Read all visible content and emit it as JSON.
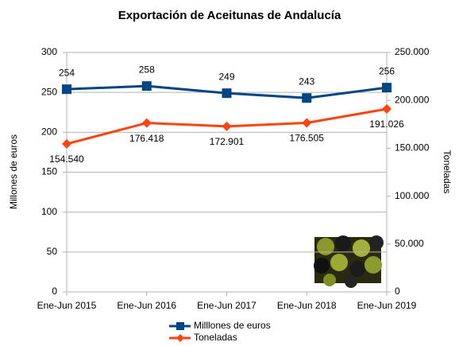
{
  "chart_data": {
    "type": "line",
    "title": "Exportación de Aceitunas de Andalucía",
    "y_label": "Millones de euros",
    "y2_label": "Toneladas",
    "categories": [
      "Ene-Jun 2015",
      "Ene-Jun 2016",
      "Ene-Jun 2017",
      "Ene-Jun 2018",
      "Ene-Jun 2019"
    ],
    "series": [
      {
        "name": "Milllones de euros",
        "color": "#004586",
        "values": [
          254,
          258,
          249,
          243,
          256
        ]
      },
      {
        "name": "Toneladas",
        "color": "#ff420e",
        "axis": "y2",
        "values": [
          154540,
          176418,
          172901,
          176505,
          191026
        ],
        "value_labels": [
          "154.540",
          "176.418",
          "172.901",
          "176.505",
          "191.026"
        ]
      }
    ],
    "ylim": [
      0,
      300
    ],
    "yticks": [
      0,
      50,
      100,
      150,
      200,
      250,
      300
    ],
    "y2lim": [
      0,
      250000
    ],
    "y2ticks": [
      0,
      {
        "value": 50000,
        "label": "50.000"
      },
      {
        "value": 100000,
        "label": "100.000"
      },
      {
        "value": 150000,
        "label": "150.000"
      },
      {
        "value": 200000,
        "label": "200.000"
      },
      {
        "value": 250000,
        "label": "250.000"
      }
    ],
    "grid": true,
    "legend": "bottom"
  }
}
